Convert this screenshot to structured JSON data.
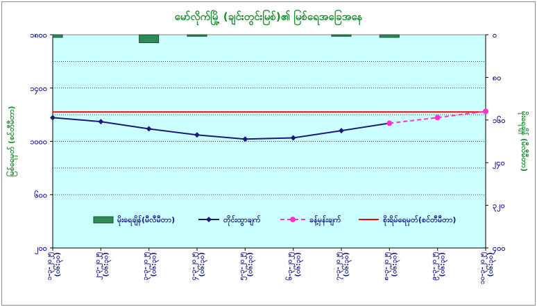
{
  "chart_data": {
    "type": "line",
    "title": "မော်လိုက်မြို့ (ချင်းတွင်းမြစ်)၏ မြစ်ရေအခြေအနေ",
    "ylabel_left": "မြစ်ရေမှတ် (စင်တီမီတာ)",
    "ylabel_right": "မိုးရေချိန် (မီလီမီတာ)",
    "categories": [
      "၁-၃-၂၀၂၅\n(၀၆:၃၀)",
      "၂-၃-၂၀၂၅\n(၀၆:၃၀)",
      "၃-၃-၂၀၂၅\n(၀၆:၃၀)",
      "၄-၃-၂၀၂၅\n(၀၆:၃၀)",
      "၅-၃-၂၀၂၅\n(၀၆:၃၀)",
      "၆-၃-၂၀၂၅\n(၀၆:၃၀)",
      "၇-၃-၂၀၂၅\n(၀၆:၃၀)",
      "၈-၃-၂၀၂၅\n(၀၆:၃၀)",
      "၉-၃-၂၀၂၅\n(၀၆:၃၀)",
      "၁၀-၃-၂၀၂၅\n(၀၆:၃၀)"
    ],
    "ylim_left": [
      200,
      1800
    ],
    "yticks_left": [
      {
        "v": 200,
        "label": "၂၀၀"
      },
      {
        "v": 600,
        "label": "၆၀၀"
      },
      {
        "v": 1000,
        "label": "၁၀၀၀"
      },
      {
        "v": 1400,
        "label": "၁၄၀၀"
      },
      {
        "v": 1800,
        "label": "၁၈၀၀"
      }
    ],
    "ylim_right": [
      0,
      400
    ],
    "ylim_right_reversed": true,
    "yticks_right": [
      {
        "v": 0,
        "label": "၀"
      },
      {
        "v": 80,
        "label": "၈၀"
      },
      {
        "v": 160,
        "label": "၁၆၀"
      },
      {
        "v": 240,
        "label": "၂၄၀"
      },
      {
        "v": 320,
        "label": "၃၂၀"
      },
      {
        "v": 400,
        "label": "၄၀၀"
      }
    ],
    "series": [
      {
        "name": "မိုးရေချိန်(မီလီမီတာ)",
        "kind": "bar",
        "axis": "right",
        "color": "#2e8b57",
        "values": [
          5,
          0,
          15,
          3,
          0,
          0,
          3,
          5,
          0,
          0
        ]
      },
      {
        "name": "တိုင်းထွာချက်",
        "kind": "line",
        "axis": "left",
        "color": "#1a1a7a",
        "values": [
          1178,
          1148,
          1094,
          1048,
          1017,
          1026,
          1080,
          1136,
          null,
          null
        ]
      },
      {
        "name": "ခန့်မှန်းချက်",
        "kind": "dashed",
        "axis": "left",
        "color": "#ff33cc",
        "values": [
          null,
          null,
          null,
          null,
          null,
          null,
          null,
          1136,
          1178,
          1225
        ]
      },
      {
        "name": "စိုးရိမ်ရေမှတ်(စင်တီမီတာ)",
        "kind": "hline",
        "axis": "left",
        "color": "#ff0000",
        "value": 1220
      }
    ],
    "grid": true,
    "legend_position": "bottom"
  }
}
